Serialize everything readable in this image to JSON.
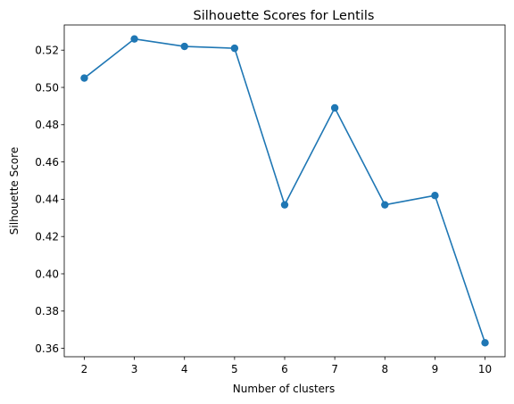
{
  "chart_data": {
    "type": "line",
    "title": "Silhouette Scores for Lentils",
    "xlabel": "Number of clusters",
    "ylabel": "Silhouette Score",
    "x": [
      2,
      3,
      4,
      5,
      6,
      7,
      8,
      9,
      10
    ],
    "series": [
      {
        "values": [
          0.505,
          0.526,
          0.522,
          0.521,
          0.437,
          0.489,
          0.437,
          0.442,
          0.363
        ],
        "color": "#1f77b4",
        "marker": "circle"
      }
    ],
    "xlim": [
      1.6,
      10.4
    ],
    "ylim": [
      0.3555,
      0.5335
    ],
    "xticks": [
      2,
      3,
      4,
      5,
      6,
      7,
      8,
      9,
      10
    ],
    "yticks": [
      0.36,
      0.38,
      0.4,
      0.42,
      0.44,
      0.46,
      0.48,
      0.5,
      0.52
    ],
    "ytick_labels": [
      "0.36",
      "0.38",
      "0.40",
      "0.42",
      "0.44",
      "0.46",
      "0.48",
      "0.50",
      "0.52"
    ],
    "grid": false,
    "legend": false
  }
}
